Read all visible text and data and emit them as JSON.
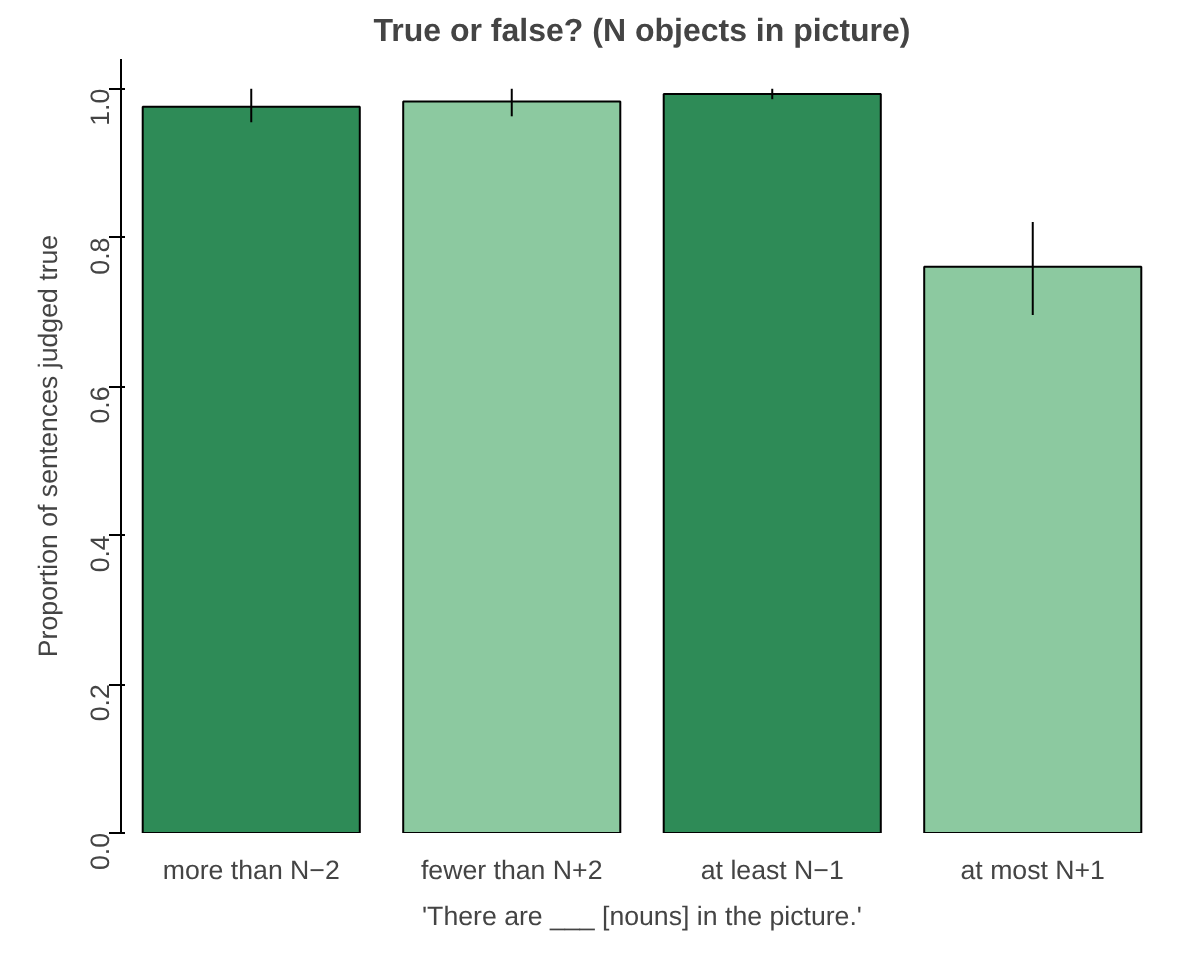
{
  "chart_data": {
    "type": "bar",
    "title": "True or false? (N objects in picture)",
    "xlabel": "'There are ___ [nouns] in the picture.'",
    "ylabel": "Proportion of sentences judged true",
    "categories": [
      "more than N−2",
      "fewer than N+2",
      "at least N−1",
      "at most N+1"
    ],
    "values": [
      0.976,
      0.983,
      0.993,
      0.761
    ],
    "colors": [
      "#2e8b57",
      "#8cc9a0",
      "#2e8b57",
      "#8cc9a0"
    ],
    "errors": [
      [
        0.955,
        1.0
      ],
      [
        0.963,
        1.0
      ],
      [
        0.986,
        1.0
      ],
      [
        0.696,
        0.821
      ]
    ],
    "ylim": [
      0,
      1.04
    ],
    "yticks": [
      {
        "value": 0,
        "label": "0.0"
      },
      {
        "value": 0.2,
        "label": "0.2"
      },
      {
        "value": 0.4,
        "label": "0.4"
      },
      {
        "value": 0.6,
        "label": "0.6"
      },
      {
        "value": 0.8,
        "label": "0.8"
      },
      {
        "value": 1,
        "label": "1.0"
      }
    ],
    "grid": false
  }
}
